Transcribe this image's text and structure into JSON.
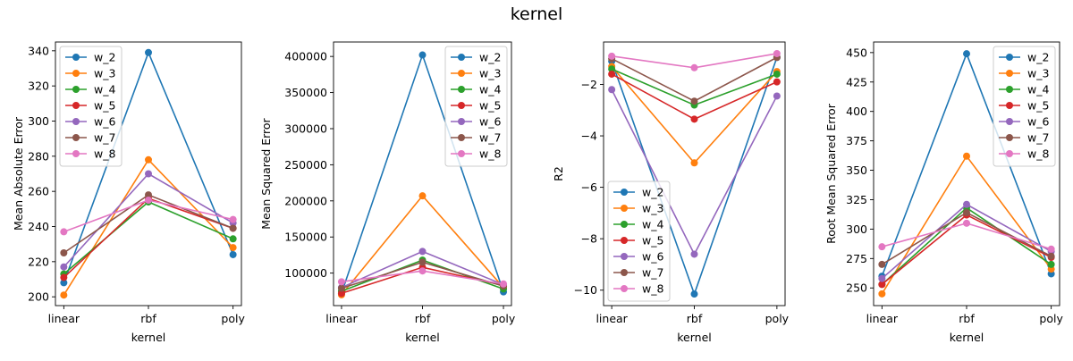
{
  "figure": {
    "title": "kernel"
  },
  "colors": {
    "w_2": "#1f77b4",
    "w_3": "#ff7f0e",
    "w_4": "#2ca02c",
    "w_5": "#d62728",
    "w_6": "#9467bd",
    "w_7": "#8c564b",
    "w_8": "#e377c2"
  },
  "chart_data": [
    {
      "type": "line",
      "xlabel": "kernel",
      "ylabel": "Mean Absolute Error",
      "categories": [
        "linear",
        "rbf",
        "poly"
      ],
      "ylim": [
        195,
        345
      ],
      "yticks": [
        200,
        220,
        240,
        260,
        280,
        300,
        320,
        340
      ],
      "ytick_labels": [
        "200",
        "220",
        "240",
        "260",
        "280",
        "300",
        "320",
        "340"
      ],
      "legend_position": "upper-left",
      "series": [
        {
          "name": "w_2",
          "values": [
            208,
            339,
            224
          ]
        },
        {
          "name": "w_3",
          "values": [
            201,
            278,
            228
          ]
        },
        {
          "name": "w_4",
          "values": [
            213,
            254,
            233
          ]
        },
        {
          "name": "w_5",
          "values": [
            211,
            256,
            239
          ]
        },
        {
          "name": "w_6",
          "values": [
            217,
            270,
            242
          ]
        },
        {
          "name": "w_7",
          "values": [
            225,
            258,
            239
          ]
        },
        {
          "name": "w_8",
          "values": [
            237,
            255,
            244
          ]
        }
      ]
    },
    {
      "type": "line",
      "xlabel": "kernel",
      "ylabel": "Mean Squared Error",
      "categories": [
        "linear",
        "rbf",
        "poly"
      ],
      "ylim": [
        55000,
        420000
      ],
      "yticks": [
        100000,
        150000,
        200000,
        250000,
        300000,
        350000,
        400000
      ],
      "ytick_labels": [
        "100000",
        "150000",
        "200000",
        "250000",
        "300000",
        "350000",
        "400000"
      ],
      "legend_position": "upper-right",
      "series": [
        {
          "name": "w_2",
          "values": [
            72000,
            402000,
            74000
          ]
        },
        {
          "name": "w_3",
          "values": [
            70000,
            207000,
            80000
          ]
        },
        {
          "name": "w_4",
          "values": [
            75000,
            118000,
            78000
          ]
        },
        {
          "name": "w_5",
          "values": [
            72000,
            108000,
            83000
          ]
        },
        {
          "name": "w_6",
          "values": [
            80000,
            130000,
            84000
          ]
        },
        {
          "name": "w_7",
          "values": [
            79000,
            115000,
            82000
          ]
        },
        {
          "name": "w_8",
          "values": [
            88000,
            103000,
            85000
          ]
        }
      ]
    },
    {
      "type": "line",
      "xlabel": "kernel",
      "ylabel": "R2",
      "categories": [
        "linear",
        "rbf",
        "poly"
      ],
      "ylim": [
        -10.6,
        -0.35
      ],
      "yticks": [
        -10,
        -8,
        -6,
        -4,
        -2
      ],
      "ytick_labels": [
        "−10",
        "−8",
        "−6",
        "−4",
        "−2"
      ],
      "legend_position": "lower-left",
      "series": [
        {
          "name": "w_2",
          "values": [
            -1.1,
            -10.15,
            -0.95
          ]
        },
        {
          "name": "w_3",
          "values": [
            -1.3,
            -5.05,
            -1.5
          ]
        },
        {
          "name": "w_4",
          "values": [
            -1.4,
            -2.8,
            -1.6
          ]
        },
        {
          "name": "w_5",
          "values": [
            -1.6,
            -3.35,
            -1.9
          ]
        },
        {
          "name": "w_6",
          "values": [
            -2.2,
            -8.6,
            -2.45
          ]
        },
        {
          "name": "w_7",
          "values": [
            -1.0,
            -2.65,
            -0.95
          ]
        },
        {
          "name": "w_8",
          "values": [
            -0.9,
            -1.35,
            -0.8
          ]
        }
      ]
    },
    {
      "type": "line",
      "xlabel": "kernel",
      "ylabel": "Root Mean Squared Error",
      "categories": [
        "linear",
        "rbf",
        "poly"
      ],
      "ylim": [
        235,
        459
      ],
      "yticks": [
        250,
        275,
        300,
        325,
        350,
        375,
        400,
        425,
        450
      ],
      "ytick_labels": [
        "250",
        "275",
        "300",
        "325",
        "350",
        "375",
        "400",
        "425",
        "450"
      ],
      "legend_position": "upper-right",
      "series": [
        {
          "name": "w_2",
          "values": [
            260,
            449,
            262
          ]
        },
        {
          "name": "w_3",
          "values": [
            245,
            362,
            266
          ]
        },
        {
          "name": "w_4",
          "values": [
            253,
            318,
            270
          ]
        },
        {
          "name": "w_5",
          "values": [
            253,
            312,
            276
          ]
        },
        {
          "name": "w_6",
          "values": [
            258,
            321,
            281
          ]
        },
        {
          "name": "w_7",
          "values": [
            270,
            314,
            277
          ]
        },
        {
          "name": "w_8",
          "values": [
            285,
            305,
            283
          ]
        }
      ]
    }
  ]
}
